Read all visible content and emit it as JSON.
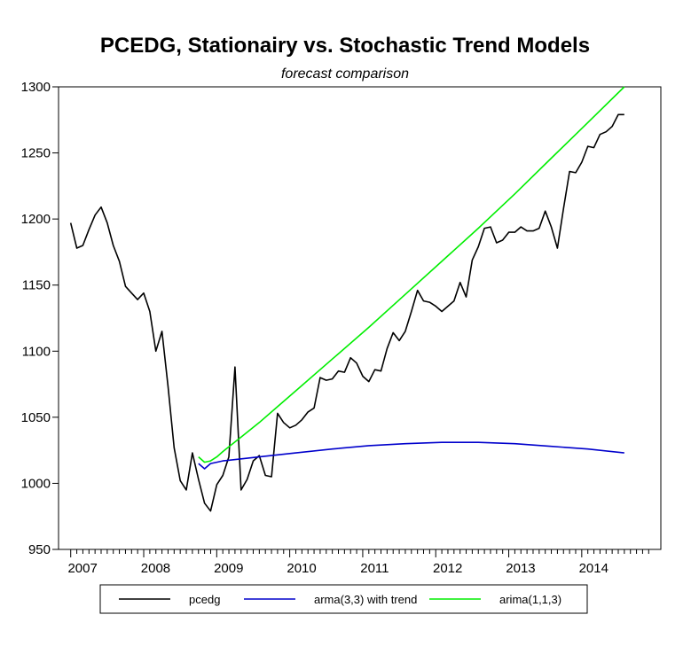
{
  "chart_data": {
    "type": "line",
    "title": "PCEDG, Stationairy vs. Stochastic Trend Models",
    "subtitle": "forecast comparison",
    "xlabel": "",
    "ylabel": "",
    "xlim": [
      2006.75,
      2015.0
    ],
    "ylim": [
      950,
      1300
    ],
    "y_ticks": [
      950,
      1000,
      1050,
      1100,
      1150,
      1200,
      1250,
      1300
    ],
    "x_ticks": [
      "2007",
      "2008",
      "2009",
      "2010",
      "2011",
      "2012",
      "2013",
      "2014"
    ],
    "grid": false,
    "legend_position": "bottom",
    "series": [
      {
        "name": "pcedg",
        "color": "#000000",
        "x": [
          2006.917,
          2007.0,
          2007.083,
          2007.167,
          2007.25,
          2007.333,
          2007.417,
          2007.5,
          2007.583,
          2007.667,
          2007.75,
          2007.833,
          2007.917,
          2008.0,
          2008.083,
          2008.167,
          2008.25,
          2008.333,
          2008.417,
          2008.5,
          2008.583,
          2008.667,
          2008.75,
          2008.833,
          2008.917,
          2009.0,
          2009.083,
          2009.167,
          2009.25,
          2009.333,
          2009.417,
          2009.5,
          2009.583,
          2009.667,
          2009.75,
          2009.833,
          2009.917,
          2010.0,
          2010.083,
          2010.167,
          2010.25,
          2010.333,
          2010.417,
          2010.5,
          2010.583,
          2010.667,
          2010.75,
          2010.833,
          2010.917,
          2011.0,
          2011.083,
          2011.167,
          2011.25,
          2011.333,
          2011.417,
          2011.5,
          2011.583,
          2011.667,
          2011.75,
          2011.833,
          2011.917,
          2012.0,
          2012.083,
          2012.167,
          2012.25,
          2012.333,
          2012.417,
          2012.5,
          2012.583,
          2012.667,
          2012.75,
          2012.833,
          2012.917,
          2013.0,
          2013.083,
          2013.167,
          2013.25,
          2013.333,
          2013.417,
          2013.5,
          2013.583,
          2013.667,
          2013.75,
          2013.833,
          2013.917,
          2014.0,
          2014.083,
          2014.167,
          2014.25,
          2014.333,
          2014.417,
          2014.5
        ],
        "values": [
          1197,
          1178,
          1180,
          1192,
          1203,
          1209,
          1197,
          1180,
          1168,
          1149,
          1144,
          1139,
          1144,
          1130,
          1100,
          1115,
          1073,
          1027,
          1002,
          995,
          1023,
          1003,
          985,
          979,
          999,
          1006,
          1020,
          1088,
          995,
          1003,
          1017,
          1021,
          1006,
          1005,
          1053,
          1046,
          1042,
          1044,
          1048,
          1054,
          1057,
          1080,
          1078,
          1079,
          1085,
          1084,
          1095,
          1091,
          1081,
          1077,
          1086,
          1085,
          1102,
          1114,
          1108,
          1115,
          1130,
          1146,
          1138,
          1137,
          1134,
          1130,
          1134,
          1138,
          1152,
          1141,
          1169,
          1179,
          1193,
          1194,
          1182,
          1184,
          1190,
          1190,
          1194,
          1191,
          1191,
          1193,
          1206,
          1194,
          1178,
          1208,
          1236,
          1235,
          1243,
          1255,
          1254,
          1264,
          1266,
          1270,
          1279,
          1279
        ]
      },
      {
        "name": "arma(3,3) with trend",
        "color": "#0000cc",
        "x": [
          2008.667,
          2008.75,
          2008.833,
          2008.917,
          2009.0,
          2009.5,
          2010.0,
          2010.5,
          2011.0,
          2011.5,
          2012.0,
          2012.25,
          2012.5,
          2013.0,
          2013.5,
          2014.0,
          2014.5
        ],
        "values": [
          1015,
          1011,
          1015,
          1016,
          1017,
          1020,
          1023,
          1026,
          1028.5,
          1030,
          1031,
          1031,
          1031,
          1030,
          1028,
          1026,
          1023
        ]
      },
      {
        "name": "arima(1,1,3)",
        "color": "#00ee00",
        "x": [
          2008.667,
          2008.75,
          2008.833,
          2008.917,
          2009.0,
          2009.25,
          2009.5,
          2009.75,
          2010.0,
          2010.5,
          2011.0,
          2011.5,
          2012.0,
          2012.5,
          2013.0,
          2013.5,
          2014.0,
          2014.5
        ],
        "values": [
          1020,
          1016,
          1017,
          1020,
          1024,
          1035,
          1046,
          1058,
          1070,
          1094,
          1118,
          1143,
          1168,
          1193,
          1219,
          1246,
          1273,
          1300
        ]
      }
    ]
  }
}
